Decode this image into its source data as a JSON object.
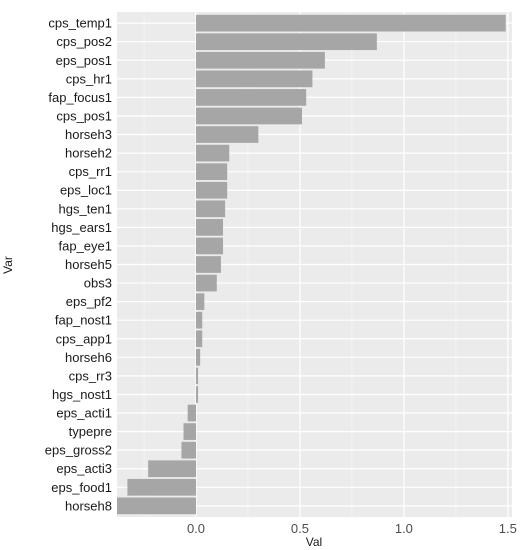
{
  "chart_data": {
    "type": "bar",
    "orientation": "horizontal",
    "xlabel": "Val",
    "ylabel": "Var",
    "xlim": [
      -0.38,
      1.52
    ],
    "x_ticks": [
      0.0,
      0.5,
      1.0,
      1.5
    ],
    "x_tick_labels": [
      "0.0",
      "0.5",
      "1.0",
      "1.5"
    ],
    "grid": true,
    "colors": {
      "panel": "#ebebeb",
      "grid_major": "#ffffff",
      "grid_minor": "#f5f5f5",
      "bar": "#a6a6a6"
    },
    "categories": [
      "cps_temp1",
      "cps_pos2",
      "eps_pos1",
      "cps_hr1",
      "fap_focus1",
      "cps_pos1",
      "horseh3",
      "horseh2",
      "cps_rr1",
      "eps_loc1",
      "hgs_ten1",
      "hgs_ears1",
      "fap_eye1",
      "horseh5",
      "obs3",
      "eps_pf2",
      "fap_nost1",
      "cps_app1",
      "horseh6",
      "cps_rr3",
      "hgs_nost1",
      "eps_acti1",
      "typepre",
      "eps_gross2",
      "eps_acti3",
      "eps_food1",
      "horseh8"
    ],
    "values": [
      1.49,
      0.87,
      0.62,
      0.56,
      0.53,
      0.51,
      0.3,
      0.16,
      0.15,
      0.15,
      0.14,
      0.13,
      0.13,
      0.12,
      0.1,
      0.04,
      0.03,
      0.03,
      0.02,
      0.01,
      0.01,
      -0.04,
      -0.06,
      -0.07,
      -0.23,
      -0.33,
      -0.38
    ]
  }
}
